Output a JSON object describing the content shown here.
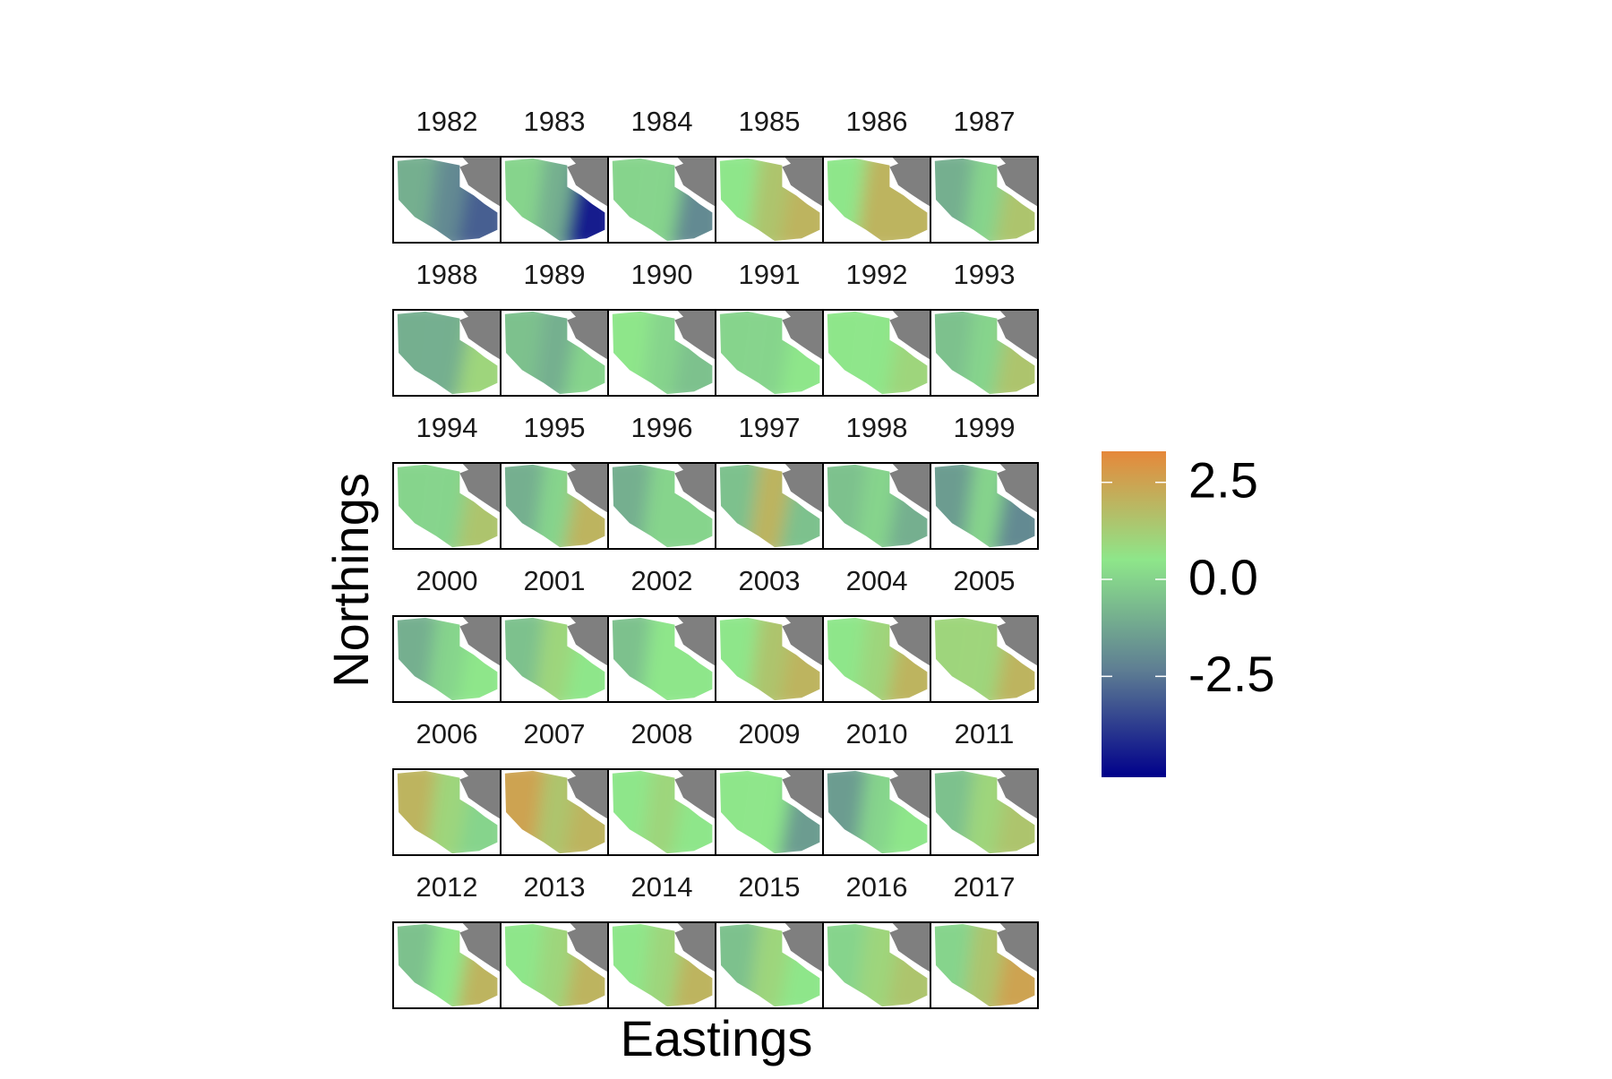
{
  "chart_data": {
    "type": "map-facets",
    "x_label": "Eastings",
    "y_label": "Northings",
    "columns": 6,
    "land_color": "#7f7f7f",
    "panels": [
      {
        "title": "1982",
        "values": [
          -1,
          -2,
          -3
        ]
      },
      {
        "title": "1983",
        "values": [
          0,
          -1,
          -4.5
        ]
      },
      {
        "title": "1984",
        "values": [
          0,
          0,
          -2
        ]
      },
      {
        "title": "1985",
        "values": [
          0.5,
          1.5,
          2
        ]
      },
      {
        "title": "1986",
        "values": [
          0.5,
          2,
          2
        ]
      },
      {
        "title": "1987",
        "values": [
          -1,
          0,
          1.5
        ]
      },
      {
        "title": "1988",
        "values": [
          -1,
          -1,
          1
        ]
      },
      {
        "title": "1989",
        "values": [
          -0.5,
          -1,
          0
        ]
      },
      {
        "title": "1990",
        "values": [
          0.5,
          0,
          -0.5
        ]
      },
      {
        "title": "1991",
        "values": [
          0,
          0,
          0.5
        ]
      },
      {
        "title": "1992",
        "values": [
          0.5,
          0.5,
          1
        ]
      },
      {
        "title": "1993",
        "values": [
          -0.5,
          0,
          1.5
        ]
      },
      {
        "title": "1994",
        "values": [
          0,
          0,
          1.5
        ]
      },
      {
        "title": "1995",
        "values": [
          -1,
          0,
          2
        ]
      },
      {
        "title": "1996",
        "values": [
          -1,
          0,
          0
        ]
      },
      {
        "title": "1997",
        "values": [
          -0.5,
          2,
          -0.5
        ]
      },
      {
        "title": "1998",
        "values": [
          -0.5,
          0,
          -1
        ]
      },
      {
        "title": "1999",
        "values": [
          -1.5,
          0,
          -2
        ]
      },
      {
        "title": "2000",
        "values": [
          -1,
          0,
          0.5
        ]
      },
      {
        "title": "2001",
        "values": [
          -0.5,
          1,
          0.5
        ]
      },
      {
        "title": "2002",
        "values": [
          -0.5,
          0.5,
          0.5
        ]
      },
      {
        "title": "2003",
        "values": [
          0.5,
          1.5,
          2
        ]
      },
      {
        "title": "2004",
        "values": [
          0.5,
          1,
          2
        ]
      },
      {
        "title": "2005",
        "values": [
          1,
          1,
          2
        ]
      },
      {
        "title": "2006",
        "values": [
          2,
          1,
          0
        ]
      },
      {
        "title": "2007",
        "values": [
          2.5,
          1.5,
          2
        ]
      },
      {
        "title": "2008",
        "values": [
          0.5,
          1,
          0.5
        ]
      },
      {
        "title": "2009",
        "values": [
          0.5,
          0.5,
          -1.5
        ]
      },
      {
        "title": "2010",
        "values": [
          -1.5,
          0,
          0.5
        ]
      },
      {
        "title": "2011",
        "values": [
          -0.5,
          1,
          1.5
        ]
      },
      {
        "title": "2012",
        "values": [
          -0.5,
          0.5,
          2
        ]
      },
      {
        "title": "2013",
        "values": [
          0.5,
          1,
          2
        ]
      },
      {
        "title": "2014",
        "values": [
          0.5,
          1,
          2
        ]
      },
      {
        "title": "2015",
        "values": [
          -0.5,
          1,
          0.5
        ]
      },
      {
        "title": "2016",
        "values": [
          0,
          1,
          1.5
        ]
      },
      {
        "title": "2017",
        "values": [
          0,
          1.5,
          2.5
        ]
      }
    ],
    "colorbar": {
      "lim": [
        -5.1,
        3.3
      ],
      "ticks": [
        2.5,
        {
          "value": 0,
          "label": "0.0"
        },
        -2.5
      ],
      "colors": [
        "#00008b",
        "#5f7f93",
        "#8ee68a",
        "#e6883a"
      ]
    }
  }
}
